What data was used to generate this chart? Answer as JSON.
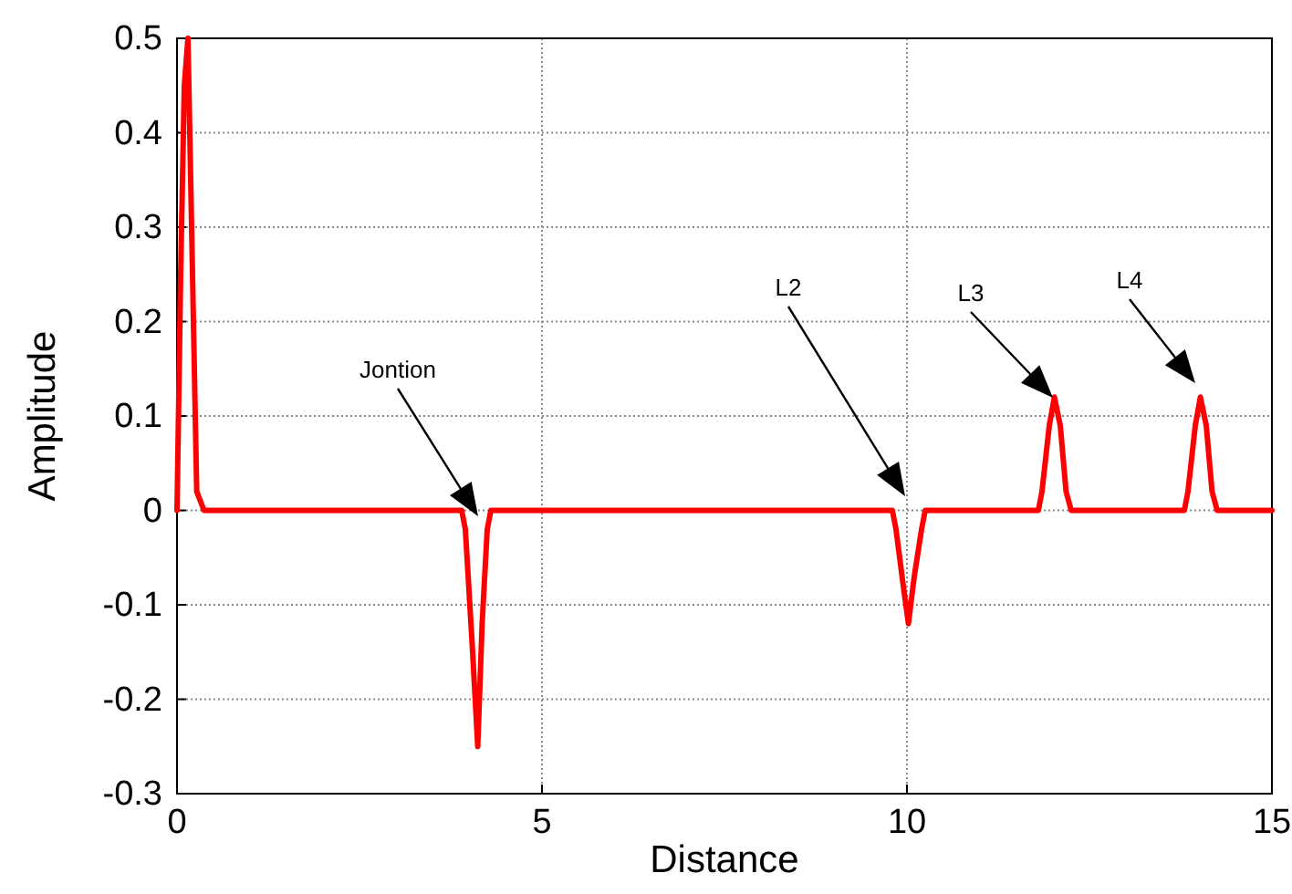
{
  "chart_data": {
    "type": "line",
    "xlabel": "Distance",
    "ylabel": "Amplitude",
    "series": [
      {
        "color": "#ff0000",
        "x": [
          0,
          0.05,
          0.1,
          0.15,
          0.2,
          0.27,
          0.37,
          0.5,
          3.9,
          3.95,
          4.05,
          4.12,
          4.18,
          4.25,
          4.3,
          4.5,
          9.8,
          9.85,
          9.95,
          10.02,
          10.1,
          10.2,
          10.25,
          10.5,
          11.8,
          11.85,
          11.95,
          12.02,
          12.1,
          12.18,
          12.25,
          12.5,
          13.8,
          13.85,
          13.95,
          14.02,
          14.1,
          14.18,
          14.25,
          15
        ],
        "values": [
          0,
          0.25,
          0.45,
          0.5,
          0.3,
          0.02,
          0,
          0,
          0,
          -0.02,
          -0.15,
          -0.25,
          -0.12,
          -0.02,
          0,
          0,
          0,
          -0.02,
          -0.08,
          -0.12,
          -0.07,
          -0.02,
          0,
          0,
          0,
          0.02,
          0.09,
          0.12,
          0.09,
          0.02,
          0,
          0,
          0,
          0.02,
          0.09,
          0.12,
          0.09,
          0.02,
          0,
          0
        ]
      }
    ],
    "xlim": [
      0,
      15
    ],
    "xticks": [
      0,
      5,
      10,
      15
    ],
    "ylim": [
      -0.3,
      0.5
    ],
    "yticks": [
      -0.3,
      -0.2,
      -0.1,
      0,
      0.1,
      0.2,
      0.3,
      0.4,
      0.5
    ],
    "grid": true,
    "marker": "none",
    "line_style": "solid",
    "annotations": [
      "Jontion",
      "L2",
      "L3",
      "L4"
    ]
  }
}
